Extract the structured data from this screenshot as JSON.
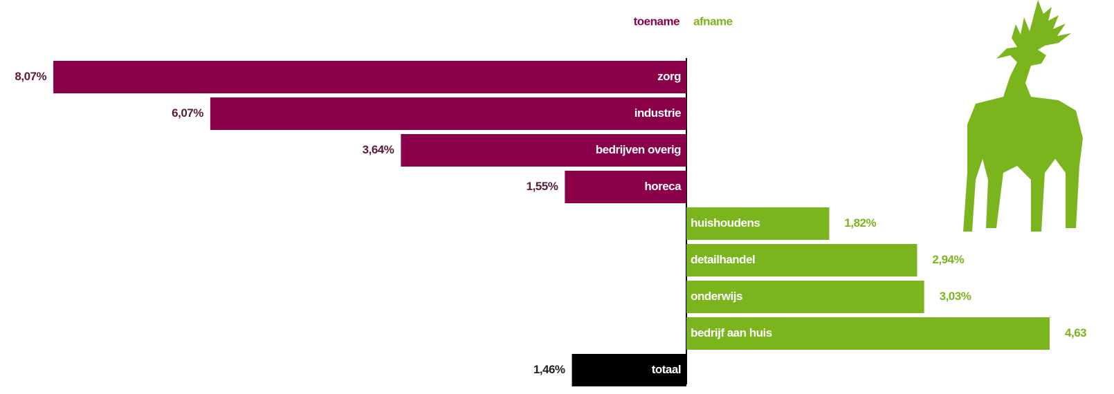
{
  "chart_data": {
    "type": "diverging-bar",
    "categories": [
      "zorg",
      "industrie",
      "bedrijven overig",
      "horeca",
      "huishoudens",
      "detailhandel",
      "onderwijs",
      "bedrijf aan huis"
    ],
    "series": [
      {
        "name": "toename",
        "color": "#8a0049",
        "direction": "left",
        "values": [
          8.07,
          6.07,
          3.64,
          1.55,
          null,
          null,
          null,
          null
        ],
        "value_labels": [
          "8,07%",
          "6,07%",
          "3,64%",
          "1,55%",
          null,
          null,
          null,
          null
        ]
      },
      {
        "name": "afname",
        "color": "#7ab51d",
        "direction": "right",
        "values": [
          null,
          null,
          null,
          null,
          1.82,
          2.94,
          3.03,
          4.63
        ],
        "value_labels": [
          null,
          null,
          null,
          null,
          "1,82%",
          "2,94%",
          "3,03%",
          "4,63"
        ]
      }
    ],
    "total": {
      "category": "totaal",
      "value": 1.46,
      "value_label": "1,46%",
      "color": "#000000",
      "direction": "left"
    },
    "xlim": [
      -8.75,
      5.45
    ]
  }
}
